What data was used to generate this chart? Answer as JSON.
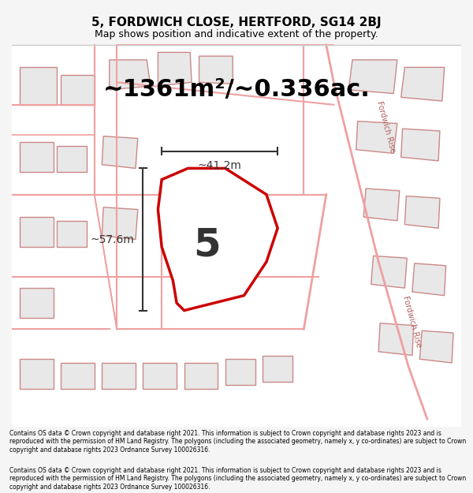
{
  "title": "5, FORDWICH CLOSE, HERTFORD, SG14 2BJ",
  "subtitle": "Map shows position and indicative extent of the property.",
  "area_text": "~1361m²/~0.336ac.",
  "dim1_text": "~57.6m",
  "dim2_text": "~41.2m",
  "label": "5",
  "footer": "Contains OS data © Crown copyright and database right 2021. This information is subject to Crown copyright and database rights 2023 and is reproduced with the permission of HM Land Registry. The polygons (including the associated geometry, namely x, y co-ordinates) are subject to Crown copyright and database rights 2023 Ordnance Survey 100026316.",
  "bg_color": "#f5f5f5",
  "map_bg": "#ffffff",
  "plot_fill": "#ffffff",
  "plot_edge": "#cc0000",
  "road_color": "#f0a0a0",
  "block_fill": "#e8e8e8",
  "block_edge": "#cc8888",
  "dim_color": "#333333",
  "label_color": "#333333",
  "title_color": "#000000",
  "footer_color": "#000000"
}
